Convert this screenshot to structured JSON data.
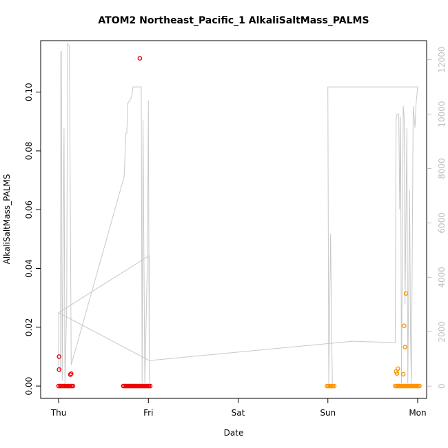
{
  "chart_data": {
    "type": "scatter",
    "title": "ATOM2 Northeast_Pacific_1 AlkaliSaltMass_PALMS",
    "xlabel": "Date",
    "ylabel": "AlkaliSaltMass_PALMS",
    "x_ticks": [
      {
        "label": "Thu",
        "value": 0
      },
      {
        "label": "Fri",
        "value": 1
      },
      {
        "label": "Sat",
        "value": 2
      },
      {
        "label": "Sun",
        "value": 3
      },
      {
        "label": "Mon",
        "value": 4
      }
    ],
    "xlim": [
      -0.2,
      4.1
    ],
    "ylim": [
      -0.0042,
      0.1175
    ],
    "y_ticks": [
      0.0,
      0.02,
      0.04,
      0.06,
      0.08,
      0.1
    ],
    "y2lim": [
      -450,
      12700
    ],
    "y2_ticks": [
      0,
      2000,
      4000,
      6000,
      8000,
      10000,
      12000
    ],
    "colors": {
      "series_red": "#ee0000",
      "series_orange": "#ff9400",
      "altitude_line": "#c8c8c8",
      "axis": "#000000",
      "right_axis": "#bebebe"
    },
    "series": [
      {
        "color": "#ee0000",
        "points": [
          [
            0.005,
            0.01
          ],
          [
            0.005,
            0.0056
          ],
          [
            0.13,
            0.0039
          ],
          [
            0.14,
            0.0042
          ],
          [
            0.905,
            0.1115
          ]
        ],
        "zero_ranges": [
          [
            0.0,
            0.16
          ],
          [
            0.72,
            1.02
          ]
        ]
      },
      {
        "color": "#ff9400",
        "points": [
          [
            3.76,
            0.005
          ],
          [
            3.77,
            0.0043
          ],
          [
            3.78,
            0.0059
          ],
          [
            3.84,
            0.004
          ],
          [
            3.85,
            0.0205
          ],
          [
            3.86,
            0.0133
          ],
          [
            3.87,
            0.0315
          ]
        ],
        "zero_ranges": [
          [
            2.99,
            3.07
          ],
          [
            3.75,
            4.02
          ]
        ]
      }
    ],
    "altitude_series": {
      "axis": "right",
      "points": [
        [
          0.0,
          2700
        ],
        [
          0.0,
          800
        ],
        [
          0.02,
          500
        ],
        [
          0.025,
          12300
        ],
        [
          0.03,
          12300
        ],
        [
          0.04,
          200
        ],
        [
          0.06,
          9500
        ],
        [
          0.07,
          100
        ],
        [
          0.09,
          3000
        ],
        [
          0.1,
          12600
        ],
        [
          0.12,
          12500
        ],
        [
          0.14,
          800
        ],
        [
          0.14,
          780
        ],
        [
          0.73,
          7700
        ],
        [
          0.75,
          9300
        ],
        [
          0.76,
          9300
        ],
        [
          0.77,
          10400
        ],
        [
          0.79,
          10500
        ],
        [
          0.81,
          10600
        ],
        [
          0.83,
          11000
        ],
        [
          0.92,
          11000
        ],
        [
          0.93,
          100
        ],
        [
          0.94,
          9800
        ],
        [
          0.96,
          100
        ],
        [
          0.99,
          4700
        ],
        [
          1.0,
          10500
        ],
        [
          1.01,
          100
        ],
        [
          1.01,
          4800
        ],
        [
          0.0,
          2700
        ],
        [
          1.01,
          940
        ],
        [
          3.28,
          1650
        ],
        [
          3.75,
          1600
        ],
        [
          3.76,
          9800
        ],
        [
          3.77,
          10000
        ],
        [
          3.79,
          10000
        ],
        [
          3.8,
          6500
        ],
        [
          3.81,
          9900
        ],
        [
          3.82,
          100
        ],
        [
          3.84,
          10300
        ],
        [
          3.85,
          9900
        ],
        [
          3.86,
          3000
        ],
        [
          3.88,
          9500
        ],
        [
          3.89,
          100
        ],
        [
          3.91,
          7200
        ],
        [
          3.92,
          1800
        ],
        [
          3.93,
          100
        ],
        [
          3.95,
          10300
        ],
        [
          3.97,
          9500
        ],
        [
          3.98,
          10300
        ],
        [
          4.0,
          11000
        ],
        [
          4.0,
          11000
        ],
        [
          3.0,
          11000
        ],
        [
          3.0,
          11000
        ],
        [
          3.01,
          100
        ],
        [
          3.03,
          5600
        ],
        [
          3.04,
          2200
        ],
        [
          3.05,
          100
        ]
      ]
    }
  }
}
